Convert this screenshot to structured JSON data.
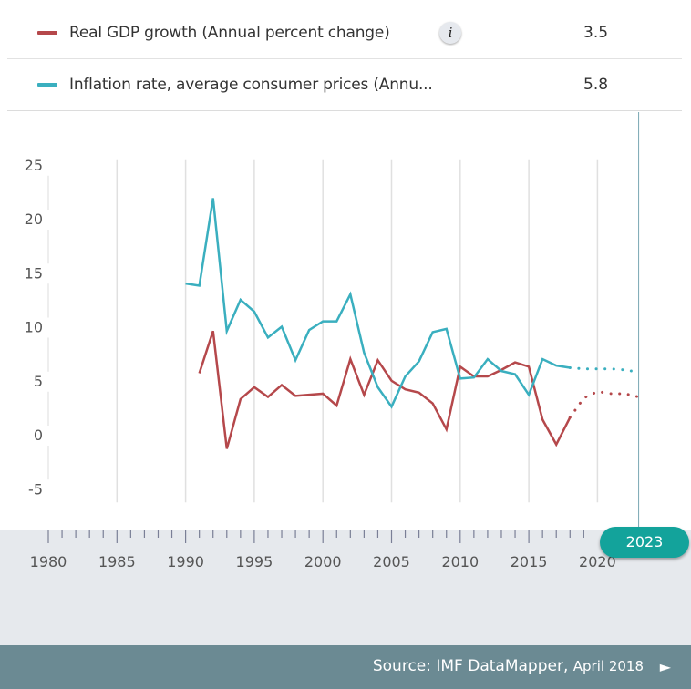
{
  "legend": [
    {
      "label": "Real GDP growth (Annual percent change)",
      "value": "3.5",
      "color": "#b5484b",
      "has_info": true
    },
    {
      "label": "Inflation rate, average consumer prices (Annu...",
      "value": "5.8",
      "color": "#3aafbf"
    }
  ],
  "info_icon": "i",
  "selected_year": "2023",
  "footer": {
    "source": "Source: IMF DataMapper,",
    "date": "April 2018",
    "arrow": "►"
  },
  "colors": {
    "accent": "#13a39b",
    "footer_bg": "#6b8a93",
    "timeline_bg": "#e6e9ed"
  },
  "chart_data": {
    "type": "line",
    "title": "",
    "xlabel": "",
    "ylabel": "",
    "ylim": [
      -5,
      25
    ],
    "xlim": [
      1980,
      2023
    ],
    "yticks": [
      25,
      20,
      15,
      10,
      5,
      0,
      -5
    ],
    "xticks": [
      1980,
      1985,
      1990,
      1995,
      2000,
      2005,
      2010,
      2015,
      2020
    ],
    "grid": "vertical",
    "projection_start": 2018,
    "series": [
      {
        "name": "Real GDP growth (Annual percent change)",
        "color": "#b5484b",
        "x": [
          1991,
          1992,
          1993,
          1994,
          1995,
          1996,
          1997,
          1998,
          1999,
          2000,
          2001,
          2002,
          2003,
          2004,
          2005,
          2006,
          2007,
          2008,
          2009,
          2010,
          2011,
          2012,
          2013,
          2014,
          2015,
          2016,
          2017,
          2018,
          2019,
          2020,
          2021,
          2022,
          2023
        ],
        "values": [
          5.7,
          9.6,
          -1.3,
          3.3,
          4.4,
          3.5,
          4.6,
          3.6,
          3.7,
          3.8,
          2.7,
          7.0,
          3.7,
          6.9,
          5.0,
          4.2,
          3.9,
          2.9,
          0.5,
          6.3,
          5.4,
          5.4,
          6.0,
          6.7,
          6.3,
          1.4,
          -0.9,
          1.6,
          3.4,
          4.0,
          3.8,
          3.8,
          3.5
        ]
      },
      {
        "name": "Inflation rate, average consumer prices (Annual percent change)",
        "color": "#3aafbf",
        "x": [
          1990,
          1991,
          1992,
          1993,
          1994,
          1995,
          1996,
          1997,
          1998,
          1999,
          2000,
          2001,
          2002,
          2003,
          2004,
          2005,
          2006,
          2007,
          2008,
          2009,
          2010,
          2011,
          2012,
          2013,
          2014,
          2015,
          2016,
          2017,
          2018,
          2019,
          2020,
          2021,
          2022,
          2023
        ],
        "values": [
          14.0,
          13.8,
          21.9,
          9.6,
          12.5,
          11.4,
          9.0,
          10.0,
          6.9,
          9.7,
          10.5,
          10.5,
          13.0,
          7.6,
          4.4,
          2.6,
          5.4,
          6.8,
          9.5,
          9.8,
          5.2,
          5.3,
          7.0,
          5.9,
          5.6,
          3.7,
          7.0,
          6.4,
          6.2,
          6.1,
          6.1,
          6.1,
          6.0,
          5.8
        ]
      }
    ]
  }
}
